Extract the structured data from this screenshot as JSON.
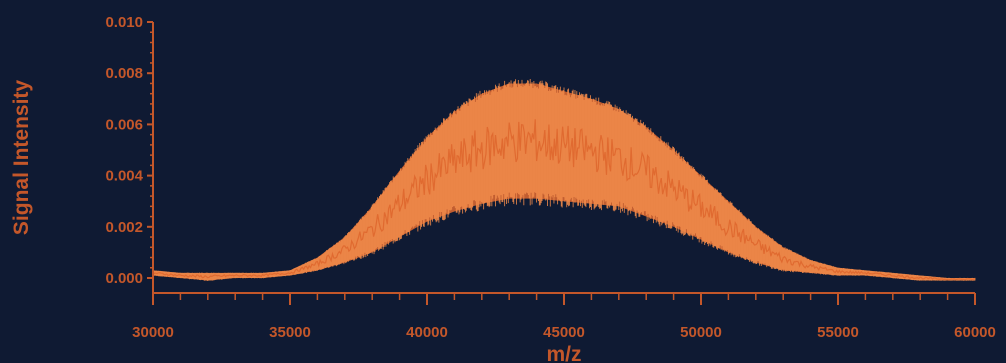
{
  "chart_data": {
    "type": "line",
    "title": "",
    "xlabel": "m/z",
    "ylabel": "Signal Intensity",
    "xlim": [
      30000,
      60000
    ],
    "ylim": [
      0.0,
      0.01
    ],
    "x_ticks": [
      30000,
      35000,
      40000,
      45000,
      50000,
      55000,
      60000
    ],
    "x_tick_labels": [
      "30000",
      "35000",
      "40000",
      "45000",
      "50000",
      "55000",
      "60000"
    ],
    "y_ticks": [
      0.0,
      0.002,
      0.004,
      0.006,
      0.008,
      0.01
    ],
    "y_tick_labels": [
      "0.000",
      "0.002",
      "0.004",
      "0.006",
      "0.008",
      "0.010"
    ],
    "grid": false,
    "legend": "none",
    "series": [
      {
        "style": "dense spectral envelope",
        "upper": {
          "x": [
            30000,
            31000,
            32000,
            33000,
            34000,
            35000,
            36000,
            37000,
            38000,
            39000,
            40000,
            41000,
            42000,
            43000,
            44000,
            45000,
            46000,
            47000,
            48000,
            49000,
            50000,
            51000,
            52000,
            53000,
            54000,
            55000,
            56000,
            57000,
            58000,
            59000,
            60000
          ],
          "y": [
            0.0003,
            0.0002,
            0.0002,
            0.0002,
            0.0002,
            0.0003,
            0.0008,
            0.0016,
            0.0028,
            0.0042,
            0.0055,
            0.0065,
            0.0072,
            0.0076,
            0.0076,
            0.0073,
            0.007,
            0.0066,
            0.0059,
            0.005,
            0.004,
            0.003,
            0.002,
            0.0012,
            0.0007,
            0.0004,
            0.0003,
            0.0002,
            0.0001,
            0.0,
            0.0
          ]
        },
        "lower": {
          "x": [
            30000,
            31000,
            32000,
            33000,
            34000,
            35000,
            36000,
            37000,
            38000,
            39000,
            40000,
            41000,
            42000,
            43000,
            44000,
            45000,
            46000,
            47000,
            48000,
            49000,
            50000,
            51000,
            52000,
            53000,
            54000,
            55000,
            56000,
            57000,
            58000,
            59000,
            60000
          ],
          "y": [
            0.0001,
            0.0,
            -0.0001,
            0.0,
            0.0,
            0.0001,
            0.0003,
            0.0006,
            0.001,
            0.0016,
            0.0022,
            0.0026,
            0.0029,
            0.0031,
            0.0031,
            0.003,
            0.0029,
            0.0028,
            0.0024,
            0.002,
            0.0015,
            0.001,
            0.0006,
            0.0003,
            0.0002,
            0.0001,
            0.0001,
            0.0,
            -0.0001,
            -0.0001,
            -0.0001
          ]
        }
      }
    ]
  },
  "colors": {
    "background": "#0f1a33",
    "axis": "#c4572a",
    "signal": "#e06a30",
    "signal_light": "#f08a4a"
  }
}
